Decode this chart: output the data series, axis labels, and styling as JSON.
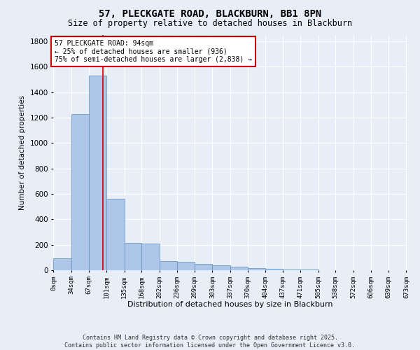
{
  "title": "57, PLECKGATE ROAD, BLACKBURN, BB1 8PN",
  "subtitle": "Size of property relative to detached houses in Blackburn",
  "xlabel": "Distribution of detached houses by size in Blackburn",
  "ylabel": "Number of detached properties",
  "bins": [
    0,
    34,
    67,
    101,
    135,
    168,
    202,
    236,
    269,
    303,
    337,
    370,
    404,
    437,
    471,
    505,
    538,
    572,
    606,
    639,
    673
  ],
  "bin_labels": [
    "0sqm",
    "34sqm",
    "67sqm",
    "101sqm",
    "135sqm",
    "168sqm",
    "202sqm",
    "236sqm",
    "269sqm",
    "303sqm",
    "337sqm",
    "370sqm",
    "404sqm",
    "437sqm",
    "471sqm",
    "505sqm",
    "538sqm",
    "572sqm",
    "606sqm",
    "639sqm",
    "673sqm"
  ],
  "counts": [
    95,
    1230,
    1530,
    560,
    215,
    210,
    70,
    65,
    50,
    40,
    25,
    15,
    10,
    5,
    3,
    2,
    1,
    1,
    0,
    0
  ],
  "bar_color": "#aec6e8",
  "bar_edge_color": "#5a8fc0",
  "bg_color": "#e8eef8",
  "grid_color": "#ffffff",
  "vline_x": 94,
  "vline_color": "#cc0000",
  "annotation_text": "57 PLECKGATE ROAD: 94sqm\n← 25% of detached houses are smaller (936)\n75% of semi-detached houses are larger (2,838) →",
  "annotation_box_color": "#ffffff",
  "annotation_box_edge": "#cc0000",
  "ylim": [
    0,
    1850
  ],
  "yticks": [
    0,
    200,
    400,
    600,
    800,
    1000,
    1200,
    1400,
    1600,
    1800
  ],
  "footer_line1": "Contains HM Land Registry data © Crown copyright and database right 2025.",
  "footer_line2": "Contains public sector information licensed under the Open Government Licence v3.0."
}
